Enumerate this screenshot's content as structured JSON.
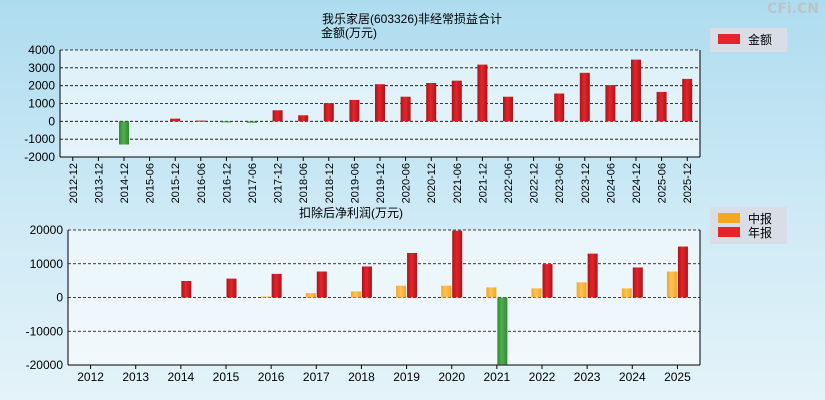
{
  "watermark": "CFi.CN",
  "colors": {
    "bar_positive": "#e8242a",
    "bar_negative": "#2f8a2f",
    "bar_half": "#f5a623",
    "grid": "#000000",
    "legend_bg": "#d8dde6"
  },
  "chart_data": [
    {
      "type": "bar",
      "title": "我乐家居(603326)非经常损益合计",
      "subtitle": "金额(万元)",
      "legend": [
        "金额"
      ],
      "legend_position": "top-right",
      "grid": true,
      "ylim": [
        -2000,
        4000
      ],
      "yticks": [
        4000,
        3000,
        2000,
        1000,
        0,
        -1000,
        -2000
      ],
      "categories": [
        "2012-12",
        "2013-12",
        "2014-12",
        "2015-06",
        "2015-12",
        "2016-06",
        "2016-12",
        "2017-06",
        "2017-12",
        "2018-06",
        "2018-12",
        "2019-06",
        "2019-12",
        "2020-06",
        "2020-12",
        "2021-06",
        "2021-12",
        "2022-06",
        "2022-12",
        "2023-06",
        "2023-12",
        "2024-06",
        "2024-12",
        "2025-06",
        "2025-12"
      ],
      "series": [
        {
          "name": "金额",
          "values": [
            0,
            0,
            -1300,
            0,
            150,
            40,
            -60,
            -80,
            620,
            340,
            1020,
            1200,
            2080,
            1380,
            2150,
            2280,
            3180,
            1380,
            0,
            1560,
            2720,
            2030,
            3460,
            1650,
            2380
          ]
        }
      ]
    },
    {
      "type": "bar",
      "title": "扣除后净利润(万元)",
      "legend": [
        "中报",
        "年报"
      ],
      "legend_position": "top-right",
      "grid": true,
      "ylim": [
        -20000,
        20000
      ],
      "yticks": [
        20000,
        10000,
        0,
        -10000,
        -20000
      ],
      "categories": [
        "2012",
        "2013",
        "2014",
        "2015",
        "2016",
        "2017",
        "2018",
        "2019",
        "2020",
        "2021",
        "2022",
        "2023",
        "2024",
        "2025"
      ],
      "series": [
        {
          "name": "中报",
          "values": [
            null,
            null,
            null,
            null,
            300,
            1300,
            1800,
            3500,
            3500,
            3000,
            2700,
            4500,
            2700,
            7700
          ]
        },
        {
          "name": "年报",
          "values": [
            null,
            null,
            4900,
            5600,
            7000,
            7700,
            9200,
            13200,
            19800,
            -19800,
            9900,
            13000,
            8900,
            15100
          ]
        }
      ]
    }
  ]
}
